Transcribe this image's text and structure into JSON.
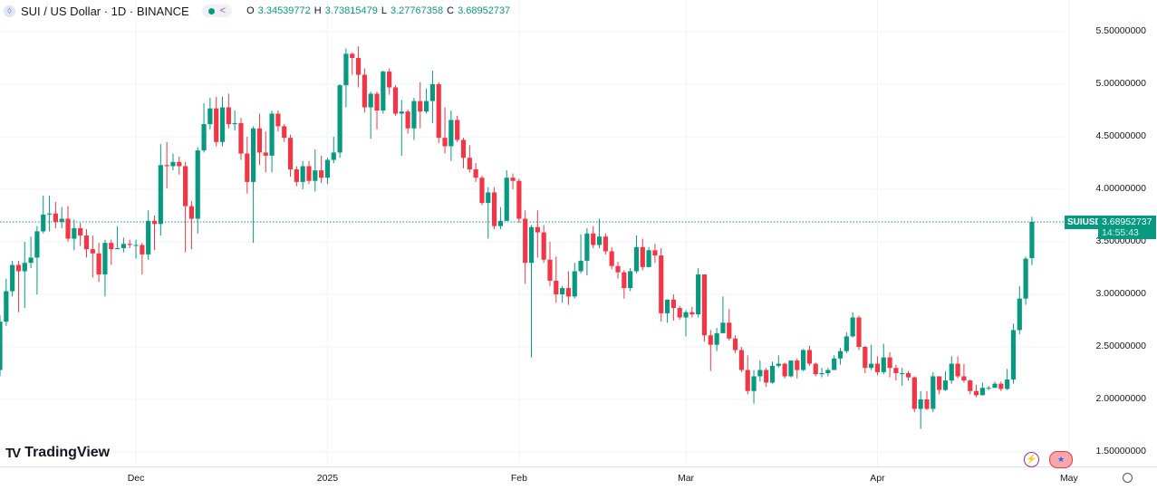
{
  "header": {
    "symbol_title": "SUI / US Dollar · 1D · BINANCE",
    "icons": [
      "sui-logo-icon",
      "live-dot-icon",
      "share-icon"
    ],
    "ohlc": [
      {
        "label": "O",
        "value": "3.34539772"
      },
      {
        "label": "H",
        "value": "3.73815479"
      },
      {
        "label": "L",
        "value": "3.27767358"
      },
      {
        "label": "C",
        "value": "3.68952737"
      }
    ]
  },
  "price_tag": {
    "symbol": "SUIUSD",
    "price": "3.68952737",
    "countdown": "14:55:43"
  },
  "branding": {
    "logo_text": "TradingView"
  },
  "colors": {
    "up": "#089981",
    "down": "#f23645",
    "grid": "#f0f3fa"
  },
  "bottom_icons": [
    "lightning-icon",
    "us-flag-icon",
    "settings-icon"
  ],
  "chart_data": {
    "type": "candlestick",
    "title": "SUI / US Dollar · 1D · BINANCE",
    "ylim": [
      1.5,
      5.5
    ],
    "y_ticks": [
      "1.50000000",
      "2.00000000",
      "2.50000000",
      "3.00000000",
      "3.50000000",
      "4.00000000",
      "4.50000000",
      "5.00000000",
      "5.50000000"
    ],
    "x_ticks": [
      {
        "label": "Dec",
        "index": 22
      },
      {
        "label": "2025",
        "index": 53
      },
      {
        "label": "Feb",
        "index": 84
      },
      {
        "label": "Mar",
        "index": 111
      },
      {
        "label": "Apr",
        "index": 142
      },
      {
        "label": "May",
        "index": 173
      }
    ],
    "last_price": 3.68952737,
    "grid": true,
    "candles_ohlc": [
      [
        2.28,
        2.8,
        2.22,
        2.74
      ],
      [
        2.74,
        3.15,
        2.7,
        3.03
      ],
      [
        3.03,
        3.32,
        2.98,
        3.28
      ],
      [
        3.28,
        3.32,
        2.83,
        3.22
      ],
      [
        3.22,
        3.5,
        2.87,
        3.3
      ],
      [
        3.3,
        3.55,
        3.25,
        3.35
      ],
      [
        3.35,
        3.65,
        3.0,
        3.6
      ],
      [
        3.6,
        3.94,
        3.58,
        3.76
      ],
      [
        3.76,
        3.94,
        3.6,
        3.77
      ],
      [
        3.77,
        3.88,
        3.63,
        3.69
      ],
      [
        3.69,
        3.83,
        3.63,
        3.72
      ],
      [
        3.72,
        3.84,
        3.5,
        3.53
      ],
      [
        3.53,
        3.71,
        3.42,
        3.63
      ],
      [
        3.63,
        3.68,
        3.46,
        3.56
      ],
      [
        3.56,
        3.62,
        3.35,
        3.43
      ],
      [
        3.43,
        3.56,
        3.16,
        3.39
      ],
      [
        3.39,
        3.49,
        3.12,
        3.19
      ],
      [
        3.19,
        3.52,
        2.98,
        3.49
      ],
      [
        3.49,
        3.52,
        3.28,
        3.43
      ],
      [
        3.43,
        3.65,
        3.43,
        3.44
      ],
      [
        3.44,
        3.54,
        3.4,
        3.48
      ],
      [
        3.48,
        3.52,
        3.44,
        3.47
      ],
      [
        3.47,
        3.52,
        3.34,
        3.47
      ],
      [
        3.47,
        3.49,
        3.19,
        3.38
      ],
      [
        3.38,
        3.8,
        3.33,
        3.7
      ],
      [
        3.7,
        3.75,
        3.42,
        3.67
      ],
      [
        3.67,
        4.43,
        3.56,
        4.23
      ],
      [
        4.23,
        4.45,
        4.01,
        4.22
      ],
      [
        4.22,
        4.34,
        4.18,
        4.26
      ],
      [
        4.26,
        4.31,
        4.14,
        4.22
      ],
      [
        4.22,
        4.26,
        3.4,
        3.84
      ],
      [
        3.84,
        3.89,
        3.43,
        3.72
      ],
      [
        3.72,
        4.4,
        3.58,
        4.37
      ],
      [
        4.37,
        4.82,
        4.35,
        4.62
      ],
      [
        4.62,
        4.87,
        4.57,
        4.77
      ],
      [
        4.77,
        4.88,
        4.41,
        4.45
      ],
      [
        4.45,
        4.88,
        4.41,
        4.78
      ],
      [
        4.78,
        4.91,
        4.58,
        4.62
      ],
      [
        4.62,
        4.75,
        4.56,
        4.63
      ],
      [
        4.63,
        4.68,
        4.28,
        4.34
      ],
      [
        4.34,
        4.5,
        3.96,
        4.07
      ],
      [
        4.07,
        4.6,
        3.49,
        4.58
      ],
      [
        4.58,
        4.72,
        4.23,
        4.35
      ],
      [
        4.35,
        4.55,
        4.16,
        4.32
      ],
      [
        4.32,
        4.75,
        4.16,
        4.72
      ],
      [
        4.72,
        4.75,
        4.55,
        4.6
      ],
      [
        4.6,
        4.62,
        4.45,
        4.49
      ],
      [
        4.49,
        4.52,
        4.12,
        4.19
      ],
      [
        4.19,
        4.22,
        4.03,
        4.07
      ],
      [
        4.07,
        4.27,
        4.0,
        4.22
      ],
      [
        4.22,
        4.27,
        4.05,
        4.08
      ],
      [
        4.08,
        4.38,
        3.98,
        4.18
      ],
      [
        4.18,
        4.32,
        4.06,
        4.11
      ],
      [
        4.11,
        4.3,
        4.05,
        4.28
      ],
      [
        4.28,
        4.5,
        4.25,
        4.35
      ],
      [
        4.35,
        5.0,
        4.3,
        4.99
      ],
      [
        4.99,
        5.34,
        4.78,
        5.29
      ],
      [
        5.29,
        5.3,
        5.09,
        5.25
      ],
      [
        5.25,
        5.36,
        4.97,
        5.09
      ],
      [
        5.09,
        5.15,
        4.73,
        4.78
      ],
      [
        4.78,
        4.93,
        4.48,
        4.91
      ],
      [
        4.91,
        4.93,
        4.57,
        4.75
      ],
      [
        4.75,
        5.13,
        4.72,
        5.12
      ],
      [
        5.12,
        5.15,
        4.9,
        4.97
      ],
      [
        4.97,
        4.99,
        4.7,
        4.72
      ],
      [
        4.72,
        4.85,
        4.32,
        4.74
      ],
      [
        4.74,
        4.76,
        4.53,
        4.58
      ],
      [
        4.58,
        4.87,
        4.47,
        4.84
      ],
      [
        4.84,
        5.02,
        4.58,
        4.74
      ],
      [
        4.74,
        4.96,
        4.72,
        4.84
      ],
      [
        4.84,
        5.13,
        4.63,
        5.0
      ],
      [
        5.0,
        5.02,
        4.44,
        4.49
      ],
      [
        4.49,
        4.78,
        4.34,
        4.41
      ],
      [
        4.41,
        4.75,
        4.27,
        4.66
      ],
      [
        4.66,
        4.7,
        4.45,
        4.47
      ],
      [
        4.47,
        4.49,
        4.2,
        4.3
      ],
      [
        4.3,
        4.42,
        4.16,
        4.19
      ],
      [
        4.19,
        4.25,
        4.07,
        4.11
      ],
      [
        4.11,
        4.13,
        3.85,
        3.87
      ],
      [
        3.87,
        4.02,
        3.53,
        3.97
      ],
      [
        3.97,
        4.02,
        3.62,
        3.65
      ],
      [
        3.65,
        3.83,
        3.62,
        3.7
      ],
      [
        3.7,
        4.18,
        3.7,
        4.11
      ],
      [
        4.11,
        4.15,
        4.0,
        4.08
      ],
      [
        4.08,
        4.1,
        3.68,
        3.72
      ],
      [
        3.72,
        3.8,
        3.1,
        3.3
      ],
      [
        3.3,
        3.66,
        2.4,
        3.64
      ],
      [
        3.64,
        3.8,
        3.35,
        3.59
      ],
      [
        3.59,
        3.66,
        3.3,
        3.33
      ],
      [
        3.33,
        3.5,
        3.08,
        3.13
      ],
      [
        3.13,
        3.36,
        2.92,
        3.0
      ],
      [
        3.0,
        3.08,
        2.92,
        3.06
      ],
      [
        3.06,
        3.22,
        2.9,
        2.98
      ],
      [
        2.98,
        3.3,
        2.96,
        3.22
      ],
      [
        3.22,
        3.57,
        3.2,
        3.32
      ],
      [
        3.32,
        3.63,
        3.18,
        3.58
      ],
      [
        3.58,
        3.65,
        3.44,
        3.47
      ],
      [
        3.47,
        3.72,
        3.44,
        3.55
      ],
      [
        3.55,
        3.58,
        3.38,
        3.41
      ],
      [
        3.41,
        3.45,
        3.24,
        3.27
      ],
      [
        3.27,
        3.31,
        3.15,
        3.21
      ],
      [
        3.21,
        3.23,
        2.96,
        3.06
      ],
      [
        3.06,
        3.25,
        3.03,
        3.22
      ],
      [
        3.22,
        3.56,
        3.2,
        3.45
      ],
      [
        3.45,
        3.53,
        3.23,
        3.26
      ],
      [
        3.26,
        3.45,
        3.26,
        3.42
      ],
      [
        3.42,
        3.48,
        3.3,
        3.37
      ],
      [
        3.37,
        3.44,
        2.74,
        2.82
      ],
      [
        2.82,
        2.95,
        2.73,
        2.95
      ],
      [
        2.95,
        3.0,
        2.75,
        2.87
      ],
      [
        2.87,
        2.89,
        2.76,
        2.78
      ],
      [
        2.78,
        2.85,
        2.6,
        2.83
      ],
      [
        2.83,
        2.88,
        2.78,
        2.81
      ],
      [
        2.81,
        3.25,
        2.78,
        3.19
      ],
      [
        3.19,
        3.19,
        2.55,
        2.61
      ],
      [
        2.61,
        2.66,
        2.27,
        2.52
      ],
      [
        2.52,
        2.68,
        2.46,
        2.63
      ],
      [
        2.63,
        2.98,
        2.66,
        2.73
      ],
      [
        2.73,
        2.86,
        2.56,
        2.58
      ],
      [
        2.58,
        2.61,
        2.44,
        2.47
      ],
      [
        2.47,
        2.5,
        2.26,
        2.28
      ],
      [
        2.28,
        2.42,
        2.05,
        2.08
      ],
      [
        2.08,
        2.28,
        1.96,
        2.22
      ],
      [
        2.22,
        2.37,
        2.17,
        2.28
      ],
      [
        2.28,
        2.3,
        2.12,
        2.16
      ],
      [
        2.16,
        2.36,
        2.15,
        2.32
      ],
      [
        2.32,
        2.42,
        2.3,
        2.34
      ],
      [
        2.34,
        2.35,
        2.2,
        2.22
      ],
      [
        2.22,
        2.37,
        2.21,
        2.37
      ],
      [
        2.37,
        2.39,
        2.2,
        2.28
      ],
      [
        2.28,
        2.48,
        2.27,
        2.47
      ],
      [
        2.47,
        2.51,
        2.32,
        2.34
      ],
      [
        2.34,
        2.35,
        2.22,
        2.24
      ],
      [
        2.24,
        2.3,
        2.21,
        2.25
      ],
      [
        2.25,
        2.3,
        2.22,
        2.28
      ],
      [
        2.28,
        2.42,
        2.28,
        2.39
      ],
      [
        2.39,
        2.49,
        2.33,
        2.46
      ],
      [
        2.46,
        2.64,
        2.44,
        2.6
      ],
      [
        2.6,
        2.83,
        2.59,
        2.78
      ],
      [
        2.78,
        2.8,
        2.47,
        2.5
      ],
      [
        2.5,
        2.51,
        2.25,
        2.3
      ],
      [
        2.3,
        2.52,
        2.28,
        2.34
      ],
      [
        2.34,
        2.41,
        2.23,
        2.26
      ],
      [
        2.26,
        2.53,
        2.24,
        2.4
      ],
      [
        2.4,
        2.45,
        2.21,
        2.3
      ],
      [
        2.3,
        2.33,
        2.18,
        2.25
      ],
      [
        2.25,
        2.3,
        2.13,
        2.25
      ],
      [
        2.25,
        2.27,
        2.18,
        2.21
      ],
      [
        2.21,
        2.22,
        1.88,
        1.91
      ],
      [
        1.91,
        2.08,
        1.72,
        2.0
      ],
      [
        2.0,
        2.08,
        1.9,
        1.91
      ],
      [
        1.91,
        2.26,
        1.88,
        2.22
      ],
      [
        2.22,
        2.22,
        2.05,
        2.09
      ],
      [
        2.09,
        2.27,
        2.08,
        2.18
      ],
      [
        2.18,
        2.41,
        2.15,
        2.34
      ],
      [
        2.34,
        2.41,
        2.2,
        2.22
      ],
      [
        2.22,
        2.34,
        2.16,
        2.18
      ],
      [
        2.18,
        2.19,
        2.05,
        2.08
      ],
      [
        2.08,
        2.14,
        2.02,
        2.04
      ],
      [
        2.04,
        2.16,
        2.04,
        2.11
      ],
      [
        2.11,
        2.13,
        2.09,
        2.11
      ],
      [
        2.11,
        2.17,
        2.12,
        2.15
      ],
      [
        2.15,
        2.17,
        2.08,
        2.1
      ],
      [
        2.1,
        2.29,
        2.09,
        2.19
      ],
      [
        2.19,
        2.72,
        2.15,
        2.66
      ],
      [
        2.66,
        3.08,
        2.62,
        2.96
      ],
      [
        2.96,
        3.36,
        2.9,
        3.34
      ],
      [
        3.34539772,
        3.73815479,
        3.27767358,
        3.68952737
      ]
    ]
  }
}
